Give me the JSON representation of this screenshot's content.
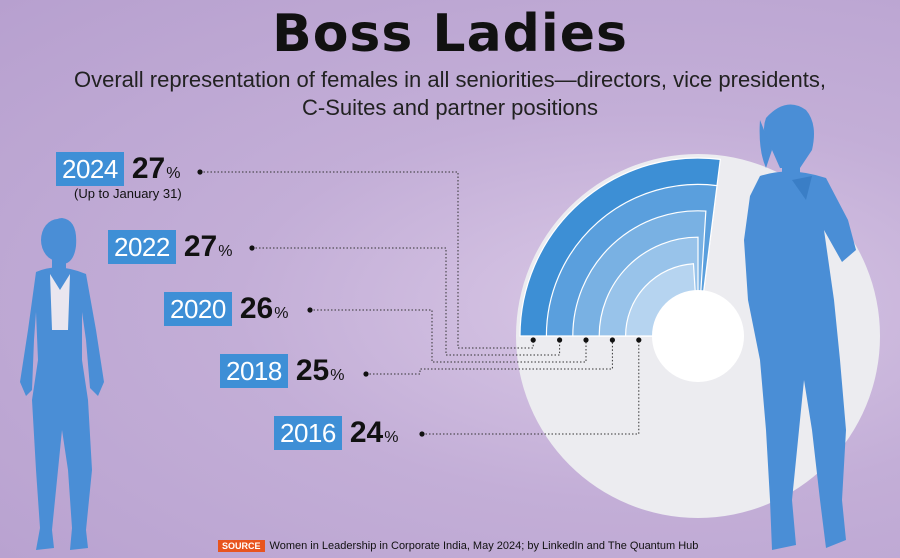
{
  "title": "Boss Ladies",
  "subtitle_line1": "Overall representation of females in all seniorities—directors, vice presidents,",
  "subtitle_line2": "C-Suites and partner positions",
  "note_2024": "(Up to January 31)",
  "source": {
    "tag": "SOURCE",
    "text": "Women in Leadership in Corporate India, May 2024; by LinkedIn and The Quantum Hub"
  },
  "colors": {
    "year_box": "#3e8fd6",
    "rings": [
      "#3d8fd5",
      "#5a9fdd",
      "#79b1e3",
      "#98c3ea",
      "#b6d4f0"
    ],
    "disc": "#ececf0",
    "silhouette": "#4a8ed6"
  },
  "chart_data": {
    "type": "pie",
    "categories": [
      "2024",
      "2022",
      "2020",
      "2018",
      "2016"
    ],
    "values": [
      27,
      27,
      26,
      25,
      24
    ],
    "unit": "%",
    "labels": [
      {
        "year": "2024",
        "value": "27",
        "unit": "%"
      },
      {
        "year": "2022",
        "value": "27",
        "unit": "%"
      },
      {
        "year": "2020",
        "value": "26",
        "unit": "%"
      },
      {
        "year": "2018",
        "value": "25",
        "unit": "%"
      },
      {
        "year": "2016",
        "value": "24",
        "unit": "%"
      }
    ]
  }
}
